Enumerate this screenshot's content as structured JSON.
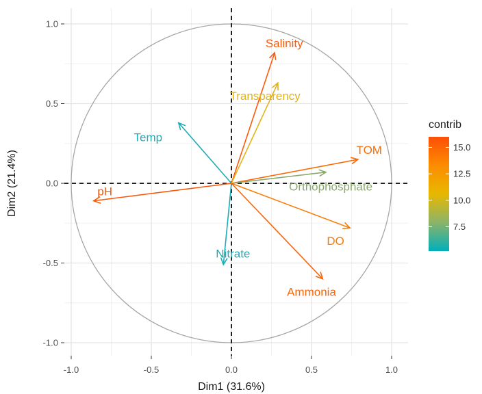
{
  "chart_data": {
    "type": "scatter",
    "subtype": "pca-variable-correlation-circle",
    "title": "",
    "xlabel": "Dim1 (31.6%)",
    "ylabel": "Dim2 (21.4%)",
    "xlim": [
      -1.0,
      1.0
    ],
    "ylim": [
      -1.0,
      1.0
    ],
    "x_ticks": [
      -1.0,
      -0.5,
      0.0,
      0.5,
      1.0
    ],
    "x_tick_labels": [
      "-1.0",
      "-0.5",
      "0.0",
      "0.5",
      "1.0"
    ],
    "y_ticks": [
      1.0,
      0.5,
      0.0,
      -0.5,
      -1.0
    ],
    "y_tick_labels": [
      "1.0",
      "0.5",
      "0.0",
      "-0.5",
      "-1.0"
    ],
    "grid": true,
    "unit_circle": true,
    "legend": {
      "title": "contrib",
      "placement": "right",
      "range": [
        5.2,
        16.0
      ],
      "ticks": [
        15.0,
        12.5,
        10.0,
        7.5
      ],
      "tick_labels": [
        "15.0",
        "12.5",
        "10.0",
        "7.5"
      ],
      "gradient_colors": [
        "#FC4E07",
        "#FC8C00",
        "#E7B800",
        "#8CB369",
        "#00AFBB"
      ]
    },
    "variables": [
      {
        "name": "Salinity",
        "x": 0.27,
        "y": 0.82,
        "contrib": 15.4,
        "color": "#F95B0C",
        "label_x": 0.33,
        "label_y": 0.88
      },
      {
        "name": "Transparency",
        "x": 0.29,
        "y": 0.63,
        "contrib": 11.0,
        "color": "#E1B31A",
        "label_x": 0.21,
        "label_y": 0.55
      },
      {
        "name": "Temp",
        "x": -0.33,
        "y": 0.38,
        "contrib": 6.2,
        "color": "#24ACB4",
        "label_x": -0.52,
        "label_y": 0.29
      },
      {
        "name": "TOM",
        "x": 0.79,
        "y": 0.15,
        "contrib": 14.6,
        "color": "#FA6B05",
        "label_x": 0.86,
        "label_y": 0.21
      },
      {
        "name": "Orthophosphate",
        "x": 0.59,
        "y": 0.07,
        "contrib": 8.6,
        "color": "#8AA86C",
        "label_x": 0.62,
        "label_y": -0.02
      },
      {
        "name": "pH",
        "x": -0.86,
        "y": -0.11,
        "contrib": 15.5,
        "color": "#F95808",
        "label_x": -0.79,
        "label_y": -0.05
      },
      {
        "name": "DO",
        "x": 0.74,
        "y": -0.28,
        "contrib": 13.8,
        "color": "#FB7A03",
        "label_x": 0.65,
        "label_y": -0.36
      },
      {
        "name": "Nitrate",
        "x": -0.05,
        "y": -0.51,
        "contrib": 5.8,
        "color": "#1AADB7",
        "label_x": 0.01,
        "label_y": -0.44
      },
      {
        "name": "Ammonia",
        "x": 0.57,
        "y": -0.6,
        "contrib": 14.2,
        "color": "#FA650A",
        "label_x": 0.5,
        "label_y": -0.68
      }
    ]
  }
}
